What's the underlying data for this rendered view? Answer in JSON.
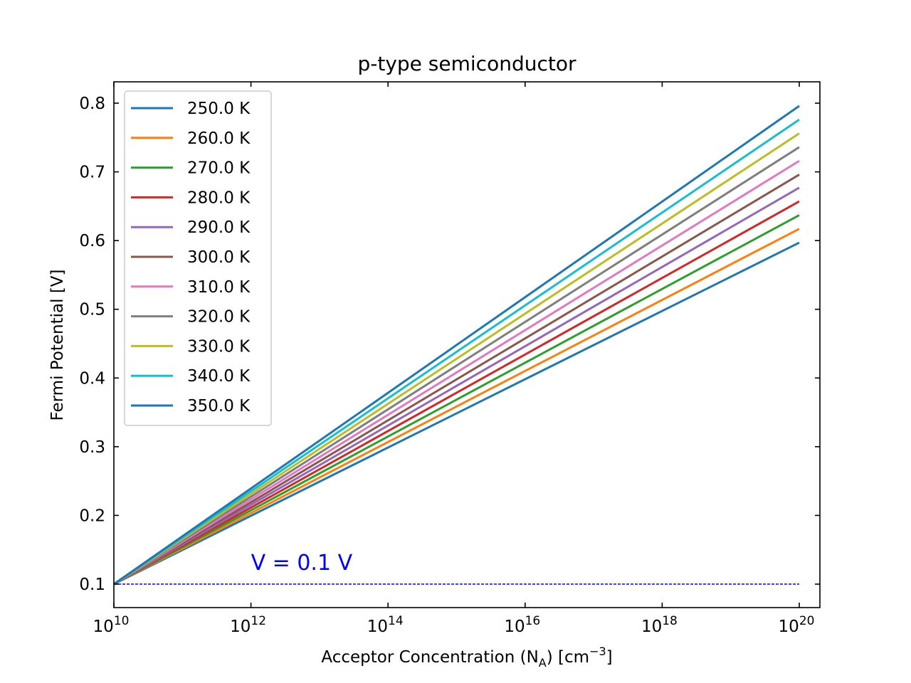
{
  "chart_data": {
    "type": "line",
    "title": "p-type semiconductor",
    "xlabel": {
      "prefix": "Acceptor Concentration (N",
      "sub": "A",
      "mid": ") [cm",
      "sup": "−3",
      "suffix": "]"
    },
    "ylabel": "Fermi Potential [V]",
    "xscale": "log",
    "xlim": [
      10000000000.0,
      1e+20
    ],
    "ylim": [
      0.1,
      0.8
    ],
    "xticks": [
      {
        "value": 10000000000.0,
        "base": "10",
        "exp": "10"
      },
      {
        "value": 1000000000000.0,
        "base": "10",
        "exp": "12"
      },
      {
        "value": 100000000000000.0,
        "base": "10",
        "exp": "14"
      },
      {
        "value": 1e+16,
        "base": "10",
        "exp": "16"
      },
      {
        "value": 1e+18,
        "base": "10",
        "exp": "18"
      },
      {
        "value": 1e+20,
        "base": "10",
        "exp": "20"
      }
    ],
    "yticks": [
      "0.1",
      "0.2",
      "0.3",
      "0.4",
      "0.5",
      "0.6",
      "0.7",
      "0.8"
    ],
    "grid": false,
    "legend_position": "upper-left",
    "x": [
      10000000000.0,
      1e+20
    ],
    "series": [
      {
        "name": "250.0 K",
        "color": "#1f77b4",
        "values": [
          0.1,
          0.597
        ]
      },
      {
        "name": "260.0 K",
        "color": "#ff7f0e",
        "values": [
          0.1,
          0.617
        ]
      },
      {
        "name": "270.0 K",
        "color": "#2ca02c",
        "values": [
          0.1,
          0.637
        ]
      },
      {
        "name": "280.0 K",
        "color": "#d62728",
        "values": [
          0.1,
          0.657
        ]
      },
      {
        "name": "290.0 K",
        "color": "#9467bd",
        "values": [
          0.1,
          0.677
        ]
      },
      {
        "name": "300.0 K",
        "color": "#8c564b",
        "values": [
          0.1,
          0.696
        ]
      },
      {
        "name": "310.0 K",
        "color": "#e377c2",
        "values": [
          0.1,
          0.716
        ]
      },
      {
        "name": "320.0 K",
        "color": "#7f7f7f",
        "values": [
          0.1,
          0.736
        ]
      },
      {
        "name": "330.0 K",
        "color": "#bcbd22",
        "values": [
          0.1,
          0.756
        ]
      },
      {
        "name": "340.0 K",
        "color": "#17becf",
        "values": [
          0.1,
          0.776
        ]
      },
      {
        "name": "350.0 K",
        "color": "#1f77b4",
        "values": [
          0.1,
          0.796
        ]
      }
    ],
    "reference_line": {
      "y": 0.1,
      "x": [
        10000000000.0,
        1e+20
      ],
      "color": "#0000ff",
      "style": "dashed"
    },
    "annotation": {
      "text": "V  = 0.1 V",
      "x": 1000000000000.0,
      "y": 0.1,
      "color": "#0000ff"
    }
  }
}
